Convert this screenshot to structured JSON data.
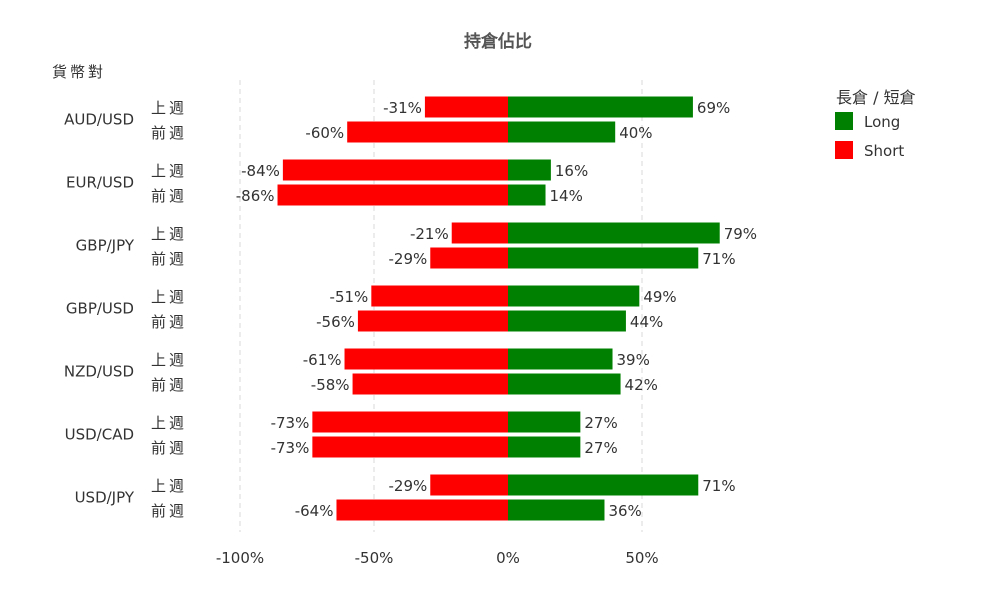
{
  "chart_data": {
    "type": "bar",
    "title": "持倉佔比",
    "y_axis_title": "貨幣對",
    "legend": {
      "title": "長倉 / 短倉",
      "position": "right",
      "items": [
        {
          "label": "Long",
          "color": "#008000"
        },
        {
          "label": "Short",
          "color": "#ff0000"
        }
      ]
    },
    "x_ticks": [
      "-100%",
      "-50%",
      "0%",
      "50%"
    ],
    "xlim": [
      -100,
      75
    ],
    "grid": true,
    "groups": [
      {
        "pair": "AUD/USD",
        "rows": [
          {
            "period": "上週",
            "short": -31,
            "long": 69
          },
          {
            "period": "前週",
            "short": -60,
            "long": 40
          }
        ]
      },
      {
        "pair": "EUR/USD",
        "rows": [
          {
            "period": "上週",
            "short": -84,
            "long": 16
          },
          {
            "period": "前週",
            "short": -86,
            "long": 14
          }
        ]
      },
      {
        "pair": "GBP/JPY",
        "rows": [
          {
            "period": "上週",
            "short": -21,
            "long": 79
          },
          {
            "period": "前週",
            "short": -29,
            "long": 71
          }
        ]
      },
      {
        "pair": "GBP/USD",
        "rows": [
          {
            "period": "上週",
            "short": -51,
            "long": 49
          },
          {
            "period": "前週",
            "short": -56,
            "long": 44
          }
        ]
      },
      {
        "pair": "NZD/USD",
        "rows": [
          {
            "period": "上週",
            "short": -61,
            "long": 39
          },
          {
            "period": "前週",
            "short": -58,
            "long": 42
          }
        ]
      },
      {
        "pair": "USD/CAD",
        "rows": [
          {
            "period": "上週",
            "short": -73,
            "long": 27
          },
          {
            "period": "前週",
            "short": -73,
            "long": 27
          }
        ]
      },
      {
        "pair": "USD/JPY",
        "rows": [
          {
            "period": "上週",
            "short": -29,
            "long": 71
          },
          {
            "period": "前週",
            "short": -64,
            "long": 36
          }
        ]
      }
    ]
  }
}
